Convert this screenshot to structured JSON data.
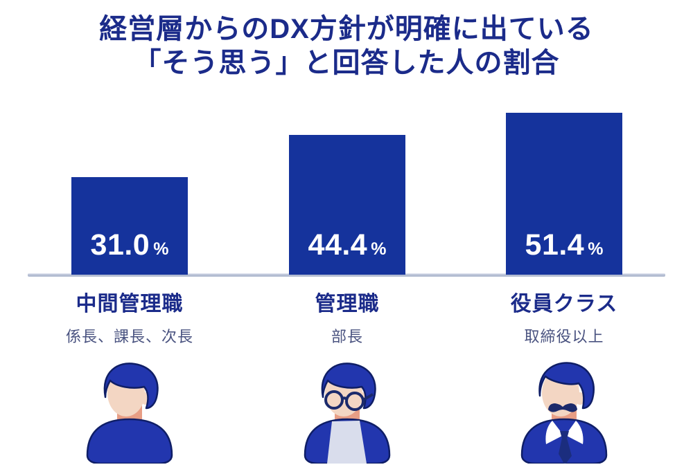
{
  "title": {
    "line1": "経営層からのDX方針が明確に出ている",
    "line2": "「そう思う」と回答した人の割合"
  },
  "chart_data": {
    "type": "bar",
    "title": "経営層からのDX方針が明確に出ている「そう思う」と回答した人の割合",
    "categories": [
      "中間管理職",
      "管理職",
      "役員クラス"
    ],
    "category_sublabels": [
      "係長、課長、次長",
      "部長",
      "取締役以上"
    ],
    "values": [
      31.0,
      44.4,
      51.4
    ],
    "value_labels": [
      "31.0",
      "44.4",
      "51.4"
    ],
    "unit": "%",
    "ylim": [
      0,
      55
    ],
    "grid": false,
    "legend": false,
    "value_label_position": "inside-bottom",
    "avatar_icons": [
      "young-man-avatar",
      "man-with-round-glasses-avatar",
      "executive-with-mustache-avatar"
    ]
  },
  "colors": {
    "background": "#ffffff",
    "bar": "#15339c",
    "value_text": "#ffffff",
    "title_text": "#1b2b8a",
    "category_text": "#1b2b8a",
    "sublabel_text": "#4a5380",
    "baseline": "#b4bdd2",
    "avatar_blue": "#2236ae",
    "avatar_outline": "#0f1e66",
    "skin": "#f3d6c3",
    "neck_shadow": "#e89e85",
    "shirt_light": "#d9ddec",
    "glasses_rim": "#1b2a6b",
    "tie": "#1b2d7e",
    "collar_white": "#ffffff"
  }
}
